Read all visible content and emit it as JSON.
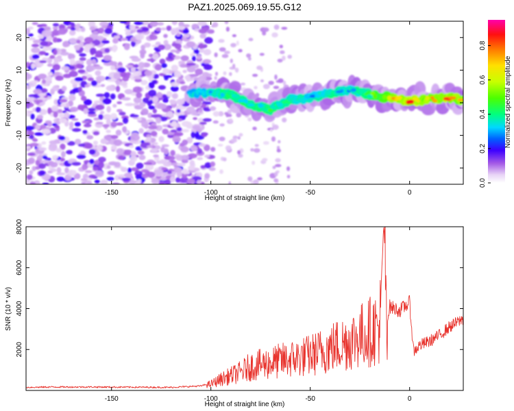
{
  "title": "PAZ1.2025.069.19.55.G12",
  "chart_data": [
    {
      "type": "heatmap",
      "xlabel": "Height of straight line (km)",
      "ylabel": "Frequency (Hz)",
      "xlim": [
        -193,
        27
      ],
      "ylim": [
        -25,
        25
      ],
      "xticks": [
        -150,
        -100,
        -50,
        0
      ],
      "yticks": [
        -20,
        -10,
        0,
        10,
        20
      ],
      "colorbar": {
        "label": "Normalized spectral amplitude",
        "range": [
          0,
          0.95
        ],
        "ticks": [
          0.0,
          0.2,
          0.4,
          0.6,
          0.8
        ],
        "colormap": "rainbow"
      },
      "ridge": {
        "description_points_x": [
          -110,
          -100,
          -90,
          -80,
          -70,
          -60,
          -50,
          -40,
          -30,
          -20,
          -10,
          0,
          10,
          20,
          27
        ],
        "center_frequency": [
          3,
          3,
          2.5,
          -0.5,
          -2,
          1,
          1.5,
          3,
          4,
          2.5,
          1.5,
          0.5,
          1,
          1.5,
          1
        ],
        "peak_amplitude": [
          0.3,
          0.35,
          0.45,
          0.45,
          0.45,
          0.4,
          0.35,
          0.4,
          0.35,
          0.5,
          0.75,
          0.85,
          0.75,
          0.8,
          0.7
        ]
      },
      "noise_region": {
        "x_range": [
          -193,
          -100
        ],
        "amplitude_range": [
          0.05,
          0.2
        ]
      }
    },
    {
      "type": "line",
      "xlabel": "Height of straight line (km)",
      "ylabel": "SNR (10 * v/v)",
      "xlim": [
        -193,
        27
      ],
      "ylim": [
        0,
        8000
      ],
      "xticks": [
        -150,
        -100,
        -50,
        0
      ],
      "yticks": [
        2000,
        4000,
        6000,
        8000
      ],
      "line_color": "#e8332d",
      "series": [
        {
          "x": [
            -193,
            -180,
            -160,
            -140,
            -120,
            -105,
            -100,
            -95,
            -90,
            -85,
            -80,
            -70,
            -60,
            -50,
            -40,
            -30,
            -20,
            -15,
            -13,
            -11,
            -10,
            -5,
            0,
            2,
            5,
            10,
            15,
            20,
            27
          ],
          "y": [
            150,
            170,
            170,
            160,
            150,
            220,
            350,
            600,
            800,
            1000,
            1300,
            1500,
            1700,
            1900,
            2300,
            2700,
            3200,
            3500,
            8000,
            3600,
            4100,
            3900,
            4300,
            1900,
            2200,
            2400,
            2700,
            3100,
            3500
          ]
        }
      ]
    }
  ]
}
